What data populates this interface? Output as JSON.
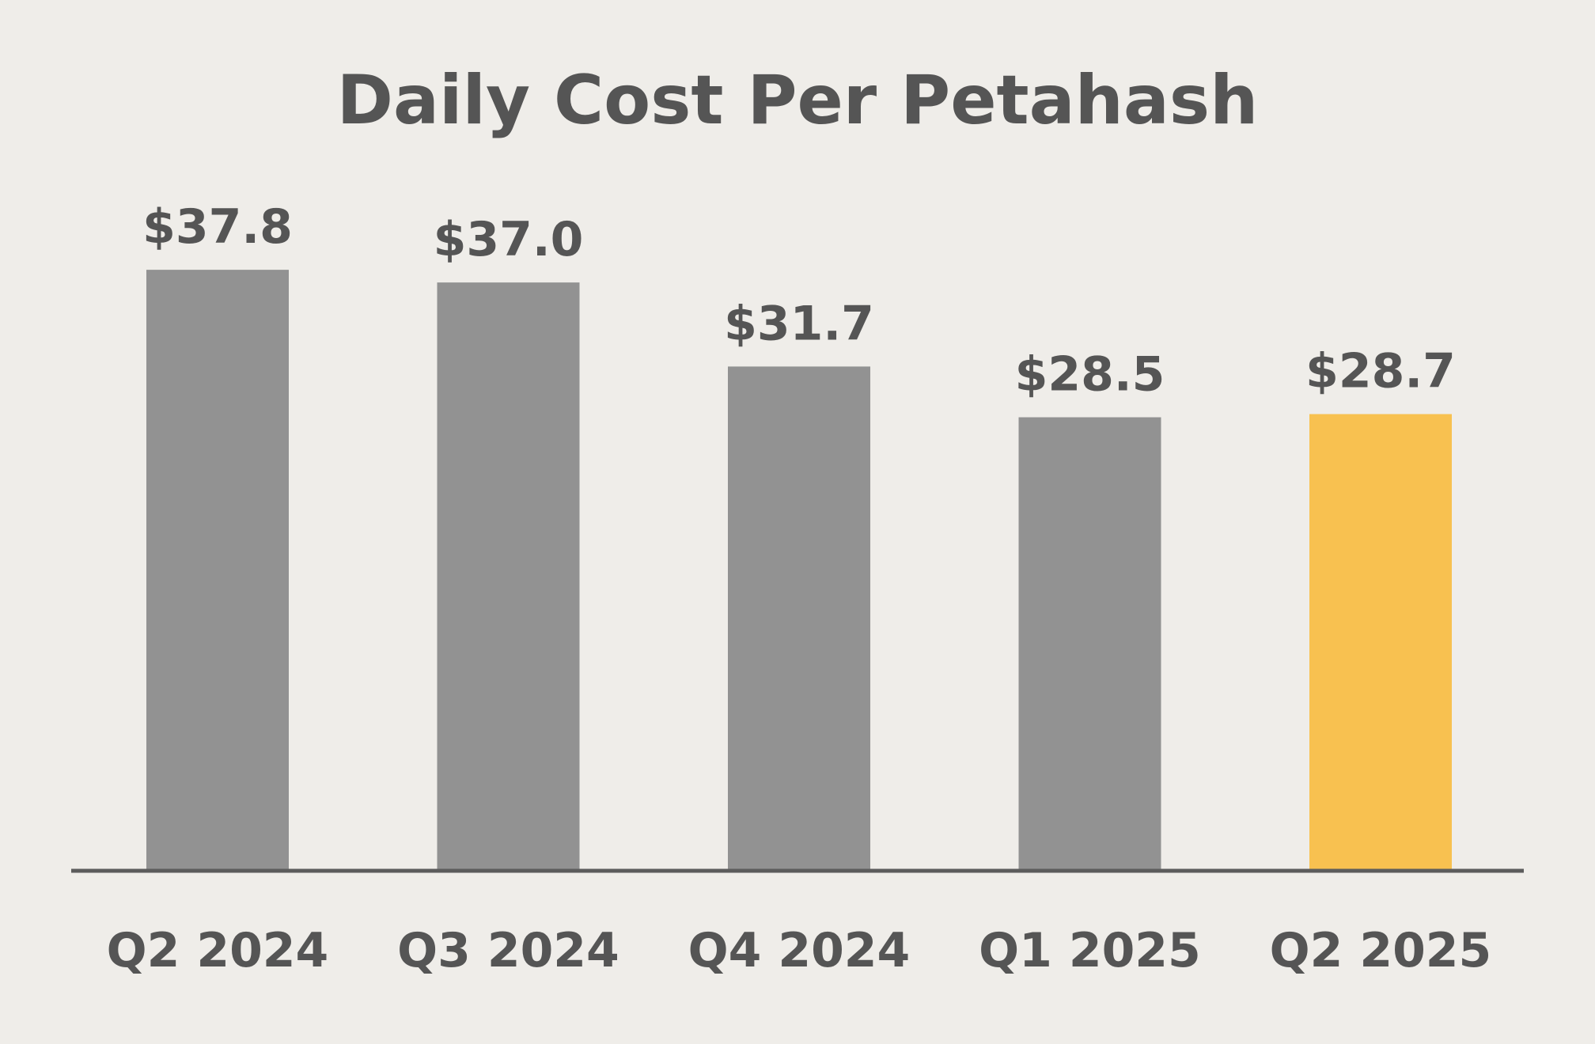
{
  "chart_data": {
    "type": "bar",
    "title": "Daily Cost Per Petahash",
    "xlabel": "",
    "ylabel": "",
    "categories": [
      "Q2 2024",
      "Q3 2024",
      "Q4 2024",
      "Q1 2025",
      "Q2 2025"
    ],
    "values": [
      37.8,
      37.0,
      31.7,
      28.5,
      28.7
    ],
    "value_labels": [
      "$37.8",
      "$37.0",
      "$31.7",
      "$28.5",
      "$28.7"
    ],
    "highlight_index": 4,
    "ylim": [
      0,
      40
    ],
    "grid": false,
    "legend": "none"
  },
  "colors": {
    "background": "#efede9",
    "bar": "#929292",
    "highlight": "#f8c150",
    "text": "#555555",
    "axis": "#5c5c5c"
  }
}
